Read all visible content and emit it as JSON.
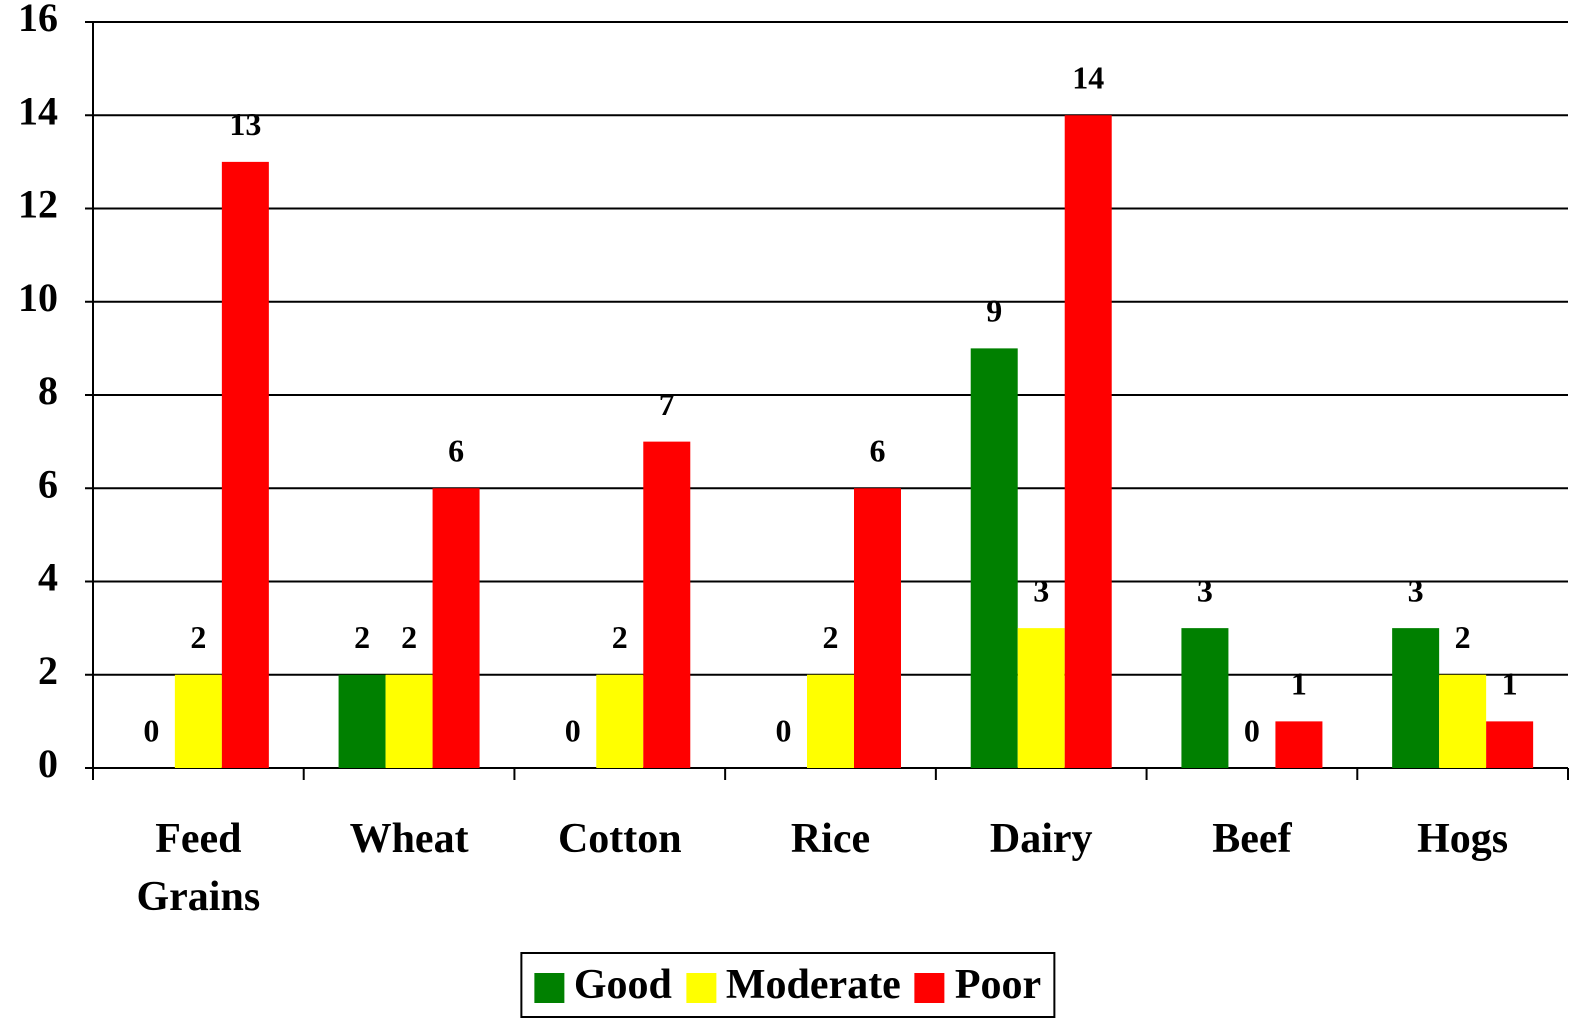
{
  "chart_data": {
    "type": "bar",
    "categories": [
      "Feed Grains",
      "Wheat",
      "Cotton",
      "Rice",
      "Dairy",
      "Beef",
      "Hogs"
    ],
    "series": [
      {
        "name": "Good",
        "color": "#008000",
        "values": [
          0,
          2,
          0,
          0,
          9,
          3,
          3
        ]
      },
      {
        "name": "Moderate",
        "color": "#ffff00",
        "values": [
          2,
          2,
          2,
          2,
          3,
          0,
          2
        ]
      },
      {
        "name": "Poor",
        "color": "#ff0000",
        "values": [
          13,
          6,
          7,
          6,
          14,
          1,
          1
        ]
      }
    ],
    "ylim": [
      0,
      16
    ],
    "yticks": [
      0,
      2,
      4,
      6,
      8,
      10,
      12,
      14,
      16
    ],
    "grid": true,
    "legend": "bottom"
  }
}
